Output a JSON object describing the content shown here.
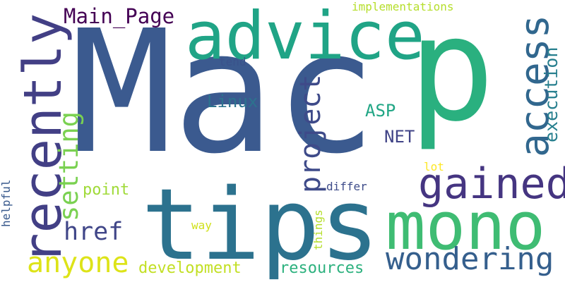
{
  "words": [
    {
      "text": "Mac",
      "color": "#3b5a8f",
      "rotated": false
    },
    {
      "text": "p",
      "color": "#2ab07f",
      "rotated": false
    },
    {
      "text": "tips",
      "color": "#2c728e",
      "rotated": false
    },
    {
      "text": "advice",
      "color": "#20a486",
      "rotated": false
    },
    {
      "text": "mono",
      "color": "#3fbc73",
      "rotated": false
    },
    {
      "text": "recently",
      "color": "#423f85",
      "rotated": true
    },
    {
      "text": "gained",
      "color": "#453581",
      "rotated": false
    },
    {
      "text": "access",
      "color": "#31678e",
      "rotated": true
    },
    {
      "text": "project",
      "color": "#3e4a89",
      "rotated": true
    },
    {
      "text": "wondering",
      "color": "#355f8d",
      "rotated": false
    },
    {
      "text": "setting",
      "color": "#7ad151",
      "rotated": true
    },
    {
      "text": "anyone",
      "color": "#dde318",
      "rotated": false
    },
    {
      "text": "href",
      "color": "#404688",
      "rotated": false
    },
    {
      "text": "Main_Page",
      "color": "#440154",
      "rotated": false
    },
    {
      "text": "execution",
      "color": "#277f8e",
      "rotated": true
    },
    {
      "text": "development",
      "color": "#c2df23",
      "rotated": false
    },
    {
      "text": "resources",
      "color": "#2cb17e",
      "rotated": false
    },
    {
      "text": "Linux",
      "color": "#2c738e",
      "rotated": false
    },
    {
      "text": "ASP",
      "color": "#21a685",
      "rotated": false
    },
    {
      "text": "NET",
      "color": "#414487",
      "rotated": false
    },
    {
      "text": "point",
      "color": "#a0da39",
      "rotated": false
    },
    {
      "text": "things",
      "color": "#b5de2b",
      "rotated": true
    },
    {
      "text": "implementations",
      "color": "#b5de2b",
      "rotated": false
    },
    {
      "text": "tend",
      "color": "#3b528b",
      "rotated": false
    },
    {
      "text": "differ",
      "color": "#3e4c8a",
      "rotated": false
    },
    {
      "text": "lot",
      "color": "#fde725",
      "rotated": false
    },
    {
      "text": "way",
      "color": "#d0e11c",
      "rotated": false
    },
    {
      "text": "helpful",
      "color": "#38598c",
      "rotated": true
    }
  ]
}
